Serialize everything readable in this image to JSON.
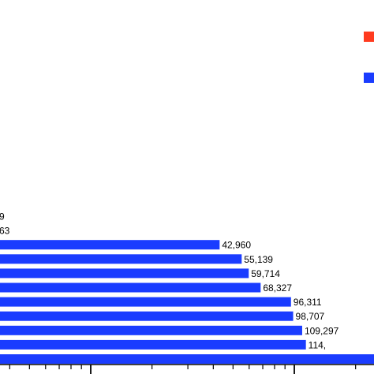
{
  "chart_data": {
    "type": "bar",
    "orientation": "horizontal",
    "x_scale": "log",
    "grid": false,
    "legend_placement": "top-right",
    "colors": {
      "series_a": "#ff3b1f",
      "series_b": "#1a3cff",
      "axis": "#000000"
    },
    "legend": [
      {
        "name": "",
        "color": "#ff3b1f"
      },
      {
        "name": "",
        "color": "#1a3cff"
      }
    ],
    "bars": [
      {
        "label": "9",
        "value": null
      },
      {
        "label": "63",
        "value": null
      },
      {
        "label": "42,960",
        "value": 42960
      },
      {
        "label": "55,139",
        "value": 55139
      },
      {
        "label": "59,714",
        "value": 59714
      },
      {
        "label": "68,327",
        "value": 68327
      },
      {
        "label": "96,311",
        "value": 96311
      },
      {
        "label": "98,707",
        "value": 98707
      },
      {
        "label": "109,297",
        "value": 109297
      },
      {
        "label": "114,",
        "value": 114000
      },
      {
        "label": "",
        "value": null
      }
    ]
  }
}
